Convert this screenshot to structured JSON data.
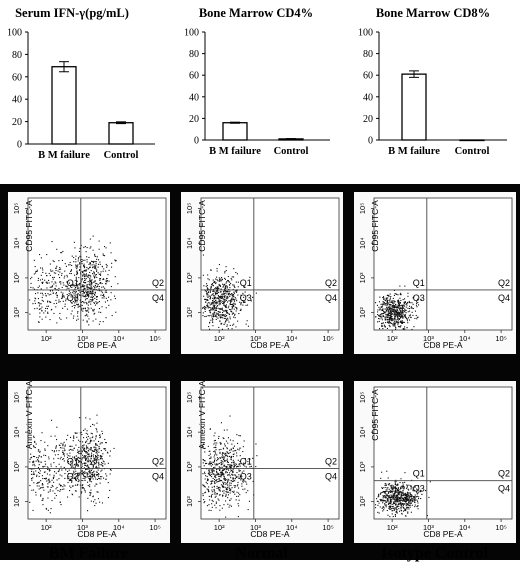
{
  "bar_charts": [
    {
      "type": "bar",
      "title": "Serum IFN-γ(pg/mL)",
      "categories": [
        "B M failure",
        "Control"
      ],
      "values": [
        69,
        19
      ],
      "errors": [
        4.5,
        0.8
      ],
      "ylim": [
        0,
        100
      ],
      "yticks": [
        0,
        20,
        40,
        60,
        80,
        100
      ]
    },
    {
      "type": "bar",
      "title": "Bone Marrow CD4%",
      "categories": [
        "B M failure",
        "Control"
      ],
      "values": [
        16,
        1
      ],
      "errors": [
        0.5,
        0.3
      ],
      "ylim": [
        0,
        100
      ],
      "yticks": [
        0,
        20,
        40,
        60,
        80,
        100
      ]
    },
    {
      "type": "bar",
      "title": "Bone Marrow CD8%",
      "categories": [
        "B M failure",
        "Control"
      ],
      "values": [
        61,
        0
      ],
      "errors": [
        3,
        0
      ],
      "ylim": [
        0,
        100
      ],
      "yticks": [
        0,
        20,
        40,
        60,
        80,
        100
      ]
    }
  ],
  "chart_data": [
    {
      "type": "bar",
      "title": "Serum IFN-γ(pg/mL)",
      "categories": [
        "B M failure",
        "Control"
      ],
      "values": [
        69,
        19
      ],
      "ylim": [
        0,
        100
      ]
    },
    {
      "type": "bar",
      "title": "Bone Marrow CD4%",
      "categories": [
        "B M failure",
        "Control"
      ],
      "values": [
        16,
        1
      ],
      "ylim": [
        0,
        100
      ]
    },
    {
      "type": "bar",
      "title": "Bone Marrow CD8%",
      "categories": [
        "B M failure",
        "Control"
      ],
      "values": [
        61,
        0
      ],
      "ylim": [
        0,
        100
      ]
    },
    {
      "type": "scatter",
      "xlabel": "CD8 PE-A",
      "ylabel": "CD95 FITC-A",
      "xscale": "log",
      "yscale": "log",
      "xticks": [
        "10²",
        "10³",
        "10⁴",
        "10⁵"
      ],
      "yticks": [
        "10²",
        "10³",
        "10⁴",
        "10⁵"
      ],
      "quadrants": [
        "Q1",
        "Q2",
        "Q3",
        "Q4"
      ],
      "gate": {
        "x": 900,
        "y": 450
      },
      "populations": [
        {
          "xc": 100,
          "yc": 500,
          "sx": 0.45,
          "sy": 0.5,
          "n": 260
        },
        {
          "xc": 1400,
          "yc": 700,
          "sx": 0.3,
          "sy": 0.5,
          "n": 520
        }
      ]
    },
    {
      "type": "scatter",
      "xlabel": "CD8 PE-A",
      "ylabel": "CD95 FITC-A",
      "xscale": "log",
      "yscale": "log",
      "xticks": [
        "10²",
        "10³",
        "10⁴",
        "10⁵"
      ],
      "yticks": [
        "10²",
        "10³",
        "10⁴",
        "10⁵"
      ],
      "quadrants": [
        "Q1",
        "Q2",
        "Q3",
        "Q4"
      ],
      "gate": {
        "x": 900,
        "y": 450
      },
      "populations": [
        {
          "xc": 110,
          "yc": 220,
          "sx": 0.3,
          "sy": 0.4,
          "n": 600
        }
      ]
    },
    {
      "type": "scatter",
      "xlabel": "CD8 PE-A",
      "ylabel": "CD95 FITC-A",
      "xscale": "log",
      "yscale": "log",
      "xticks": [
        "10²",
        "10³",
        "10⁴",
        "10⁵"
      ],
      "yticks": [
        "10²",
        "10³",
        "10⁴",
        "10⁵"
      ],
      "quadrants": [
        "Q1",
        "Q2",
        "Q3",
        "Q4"
      ],
      "gate": {
        "x": 900,
        "y": 450
      },
      "populations": [
        {
          "xc": 110,
          "yc": 110,
          "sx": 0.25,
          "sy": 0.25,
          "n": 560
        }
      ]
    },
    {
      "type": "scatter",
      "xlabel": "CD8 PE-A",
      "ylabel": "Annexin V FITC-A",
      "xscale": "log",
      "yscale": "log",
      "xticks": [
        "10²",
        "10³",
        "10⁴",
        "10⁵"
      ],
      "yticks": [
        "10²",
        "10³",
        "10⁴",
        "10⁵"
      ],
      "quadrants": [
        "Q1",
        "Q2",
        "Q3",
        "Q4"
      ],
      "gate": {
        "x": 900,
        "y": 900
      },
      "populations": [
        {
          "xc": 100,
          "yc": 900,
          "sx": 0.4,
          "sy": 0.55,
          "n": 280
        },
        {
          "xc": 1400,
          "yc": 1300,
          "sx": 0.3,
          "sy": 0.5,
          "n": 520
        }
      ]
    },
    {
      "type": "scatter",
      "xlabel": "CD8 PE-A",
      "ylabel": "Annexin V FITC-A",
      "xscale": "log",
      "yscale": "log",
      "xticks": [
        "10²",
        "10³",
        "10⁴",
        "10⁵"
      ],
      "yticks": [
        "10²",
        "10³",
        "10⁴",
        "10⁵"
      ],
      "quadrants": [
        "Q1",
        "Q2",
        "Q3",
        "Q4"
      ],
      "gate": {
        "x": 900,
        "y": 900
      },
      "populations": [
        {
          "xc": 120,
          "yc": 700,
          "sx": 0.35,
          "sy": 0.5,
          "n": 620
        }
      ]
    },
    {
      "type": "scatter",
      "xlabel": "CD8 PE-A",
      "ylabel": "CD95 FITC-A",
      "xscale": "log",
      "yscale": "log",
      "xticks": [
        "10²",
        "10³",
        "10⁴",
        "10⁵"
      ],
      "yticks": [
        "10²",
        "10³",
        "10⁴",
        "10⁵"
      ],
      "quadrants": [
        "Q1",
        "Q2",
        "Q3",
        "Q4"
      ],
      "gate": {
        "x": 900,
        "y": 400
      },
      "populations": [
        {
          "xc": 140,
          "yc": 130,
          "sx": 0.3,
          "sy": 0.22,
          "n": 620
        }
      ]
    }
  ],
  "columns": [
    "BM Failure",
    "Normal",
    "Isotype Control"
  ]
}
